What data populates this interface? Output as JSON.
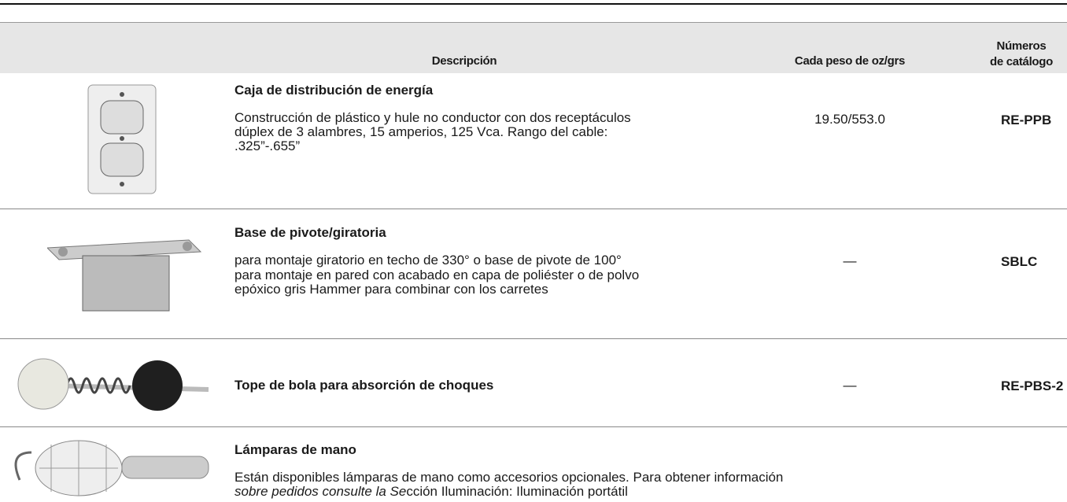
{
  "header": {
    "description": "Descripción",
    "weight": "Cada peso de oz/grs",
    "catalog": [
      "Números",
      "de catálogo"
    ]
  },
  "rows": [
    {
      "title": "Caja de distribución de energía",
      "lines": [
        "Construcción de plástico y hule no conductor con dos receptáculos",
        "dúplex de 3 alambres, 15 amperios, 125 Vca. Rango del cable:",
        ".325”-.655”"
      ],
      "weight": "19.50/553.0",
      "catalog": "RE-PPB"
    },
    {
      "title": "Base de pivote/giratoria",
      "lines": [
        "para montaje giratorio en techo de 330° o base de pivote de 100°",
        "para montaje en pared con acabado en capa de poliéster o de polvo",
        "epóxico gris Hammer para combinar con los carretes"
      ],
      "weight": "—",
      "catalog": "SBLC"
    },
    {
      "title": "Tope de bola para absorción de choques",
      "weight": "—",
      "catalog": "RE-PBS-2"
    },
    {
      "title": "Lámparas de mano",
      "lines": [
        "Están disponibles lámparas de mano como accesorios opcionales. Para obtener información"
      ],
      "italic_part": "sobre pedidos consulte la Se",
      "normal_part": "cción Iluminación: Iluminación portátil"
    }
  ]
}
